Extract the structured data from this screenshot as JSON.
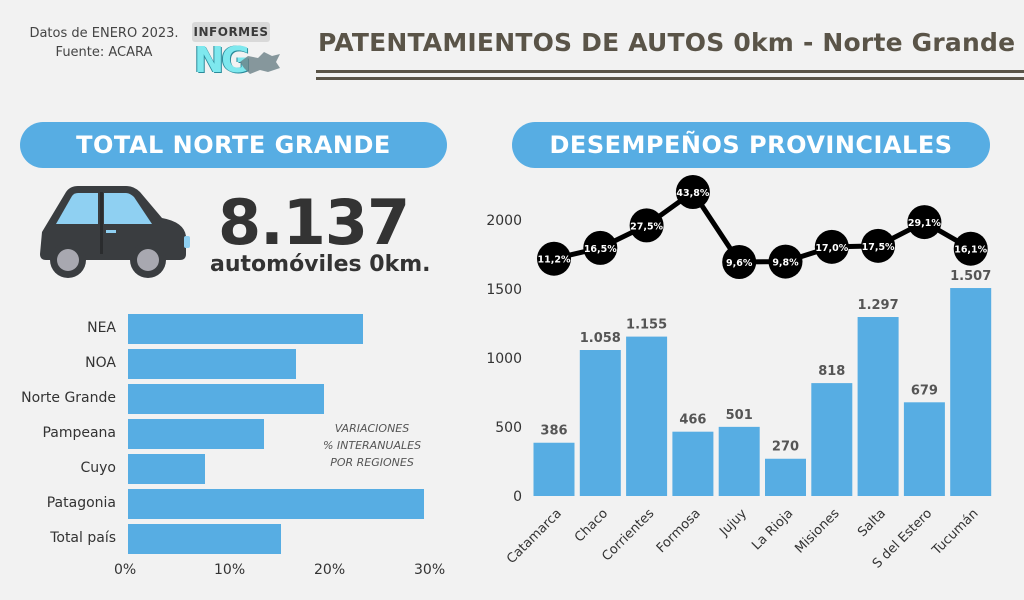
{
  "header": {
    "source_line1": "Datos de ENERO 2023.",
    "source_line2": "Fuente: ACARA",
    "logo_top": "INFORMES",
    "logo_mark": "NG",
    "title": "PATENTAMIENTOS DE AUTOS 0km - Norte Grande"
  },
  "total_section": {
    "heading": "TOTAL NORTE GRANDE",
    "total_value": "8.137",
    "total_unit": "automóviles 0km.",
    "note": [
      "VARIACIONES",
      "% INTERANUALES",
      "POR REGIONES"
    ]
  },
  "provincial_section": {
    "heading": "DESEMPEÑOS PROVINCIALES"
  },
  "colors": {
    "accent": "#57ade3",
    "title": "#5a5448",
    "car_body": "#3a3d40",
    "car_window": "#8fd0f2",
    "dot": "#000000"
  },
  "chart_data": [
    {
      "type": "bar",
      "orientation": "horizontal",
      "categories": [
        "NEA",
        "NOA",
        "Norte Grande",
        "Pampeana",
        "Cuyo",
        "Patagonia",
        "Total país"
      ],
      "values": [
        23.5,
        16.8,
        19.6,
        13.6,
        7.7,
        29.6,
        15.3
      ],
      "xlim": [
        0,
        30
      ],
      "xticks": [
        "0%",
        "10%",
        "20%",
        "30%"
      ],
      "grid": false
    },
    {
      "type": "bar",
      "categories": [
        "Catamarca",
        "Chaco",
        "Corrientes",
        "Formosa",
        "Jujuy",
        "La Rioja",
        "Misiones",
        "Salta",
        "S del Estero",
        "Tucumán"
      ],
      "values": [
        386,
        1058,
        1155,
        466,
        501,
        270,
        818,
        1297,
        679,
        1507
      ],
      "value_labels": [
        "386",
        "1.058",
        "1.155",
        "466",
        "501",
        "270",
        "818",
        "1.297",
        "679",
        "1.507"
      ],
      "ylim": [
        0,
        2200
      ],
      "yticks": [
        "0",
        "500",
        "1000",
        "1500",
        "2000"
      ],
      "line_overlay": {
        "type": "line",
        "values": [
          11.2,
          16.5,
          27.5,
          43.8,
          9.6,
          9.8,
          17.0,
          17.5,
          29.1,
          16.1
        ],
        "labels": [
          "11,2%",
          "16,5%",
          "27,5%",
          "43,8%",
          "9,6%",
          "9,8%",
          "17,0%",
          "17,5%",
          "29,1%",
          "16,1%"
        ]
      },
      "grid": false
    }
  ]
}
